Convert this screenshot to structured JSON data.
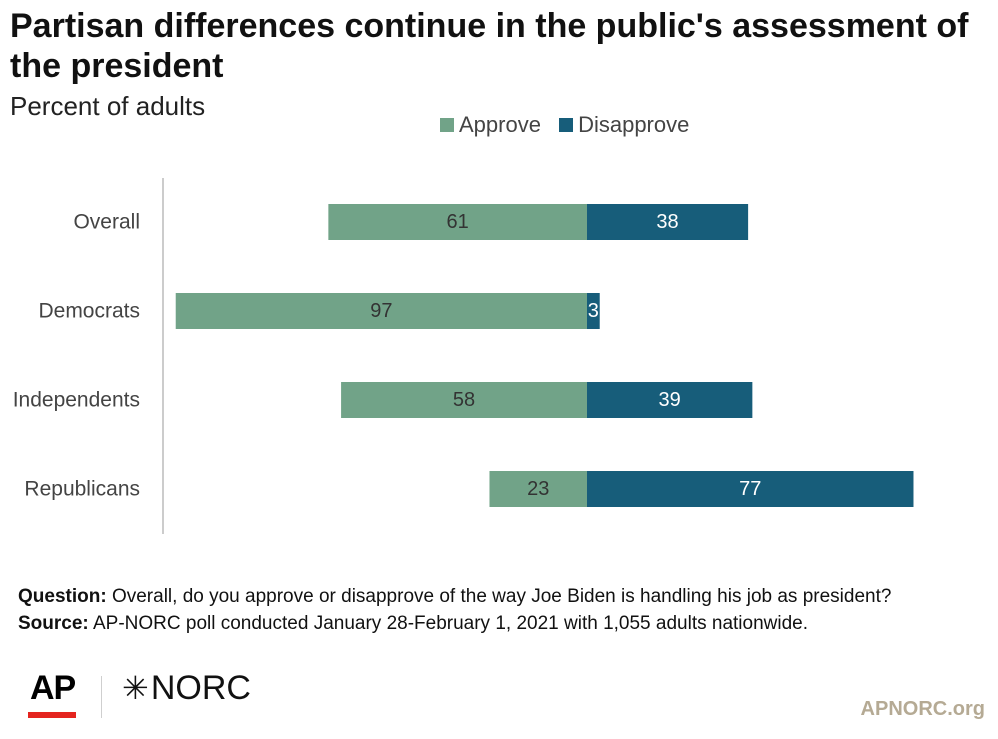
{
  "title": "Partisan differences continue in the public's assessment of the president",
  "subtitle": "Percent of adults",
  "legend": {
    "approve_label": "Approve",
    "disapprove_label": "Disapprove"
  },
  "colors": {
    "approve": "#71a388",
    "disapprove": "#175d7a",
    "axis": "#cccccc",
    "approve_text": "#333333",
    "disapprove_text": "#ffffff",
    "site": "#b5aa94",
    "ap_red": "#e4241f"
  },
  "chart_data": {
    "type": "bar",
    "orientation": "horizontal",
    "stacking": "diverging",
    "categories": [
      "Overall",
      "Democrats",
      "Independents",
      "Republicans"
    ],
    "series": [
      {
        "name": "Approve",
        "values": [
          61,
          97,
          58,
          23
        ]
      },
      {
        "name": "Disapprove",
        "values": [
          38,
          3,
          39,
          77
        ]
      }
    ],
    "legend_position": "top",
    "grid": false,
    "data_labels": true
  },
  "footnote": {
    "question_label": "Question:",
    "question_text": "Overall, do you approve or disapprove of the way Joe Biden is handling his job as president?",
    "source_label": "Source:",
    "source_text": "AP-NORC poll conducted January 28-February 1, 2021 with 1,055 adults nationwide."
  },
  "logos": {
    "ap": "AP",
    "norc": "NORC",
    "norc_mark": "✳"
  },
  "site_label": "APNORC.org"
}
